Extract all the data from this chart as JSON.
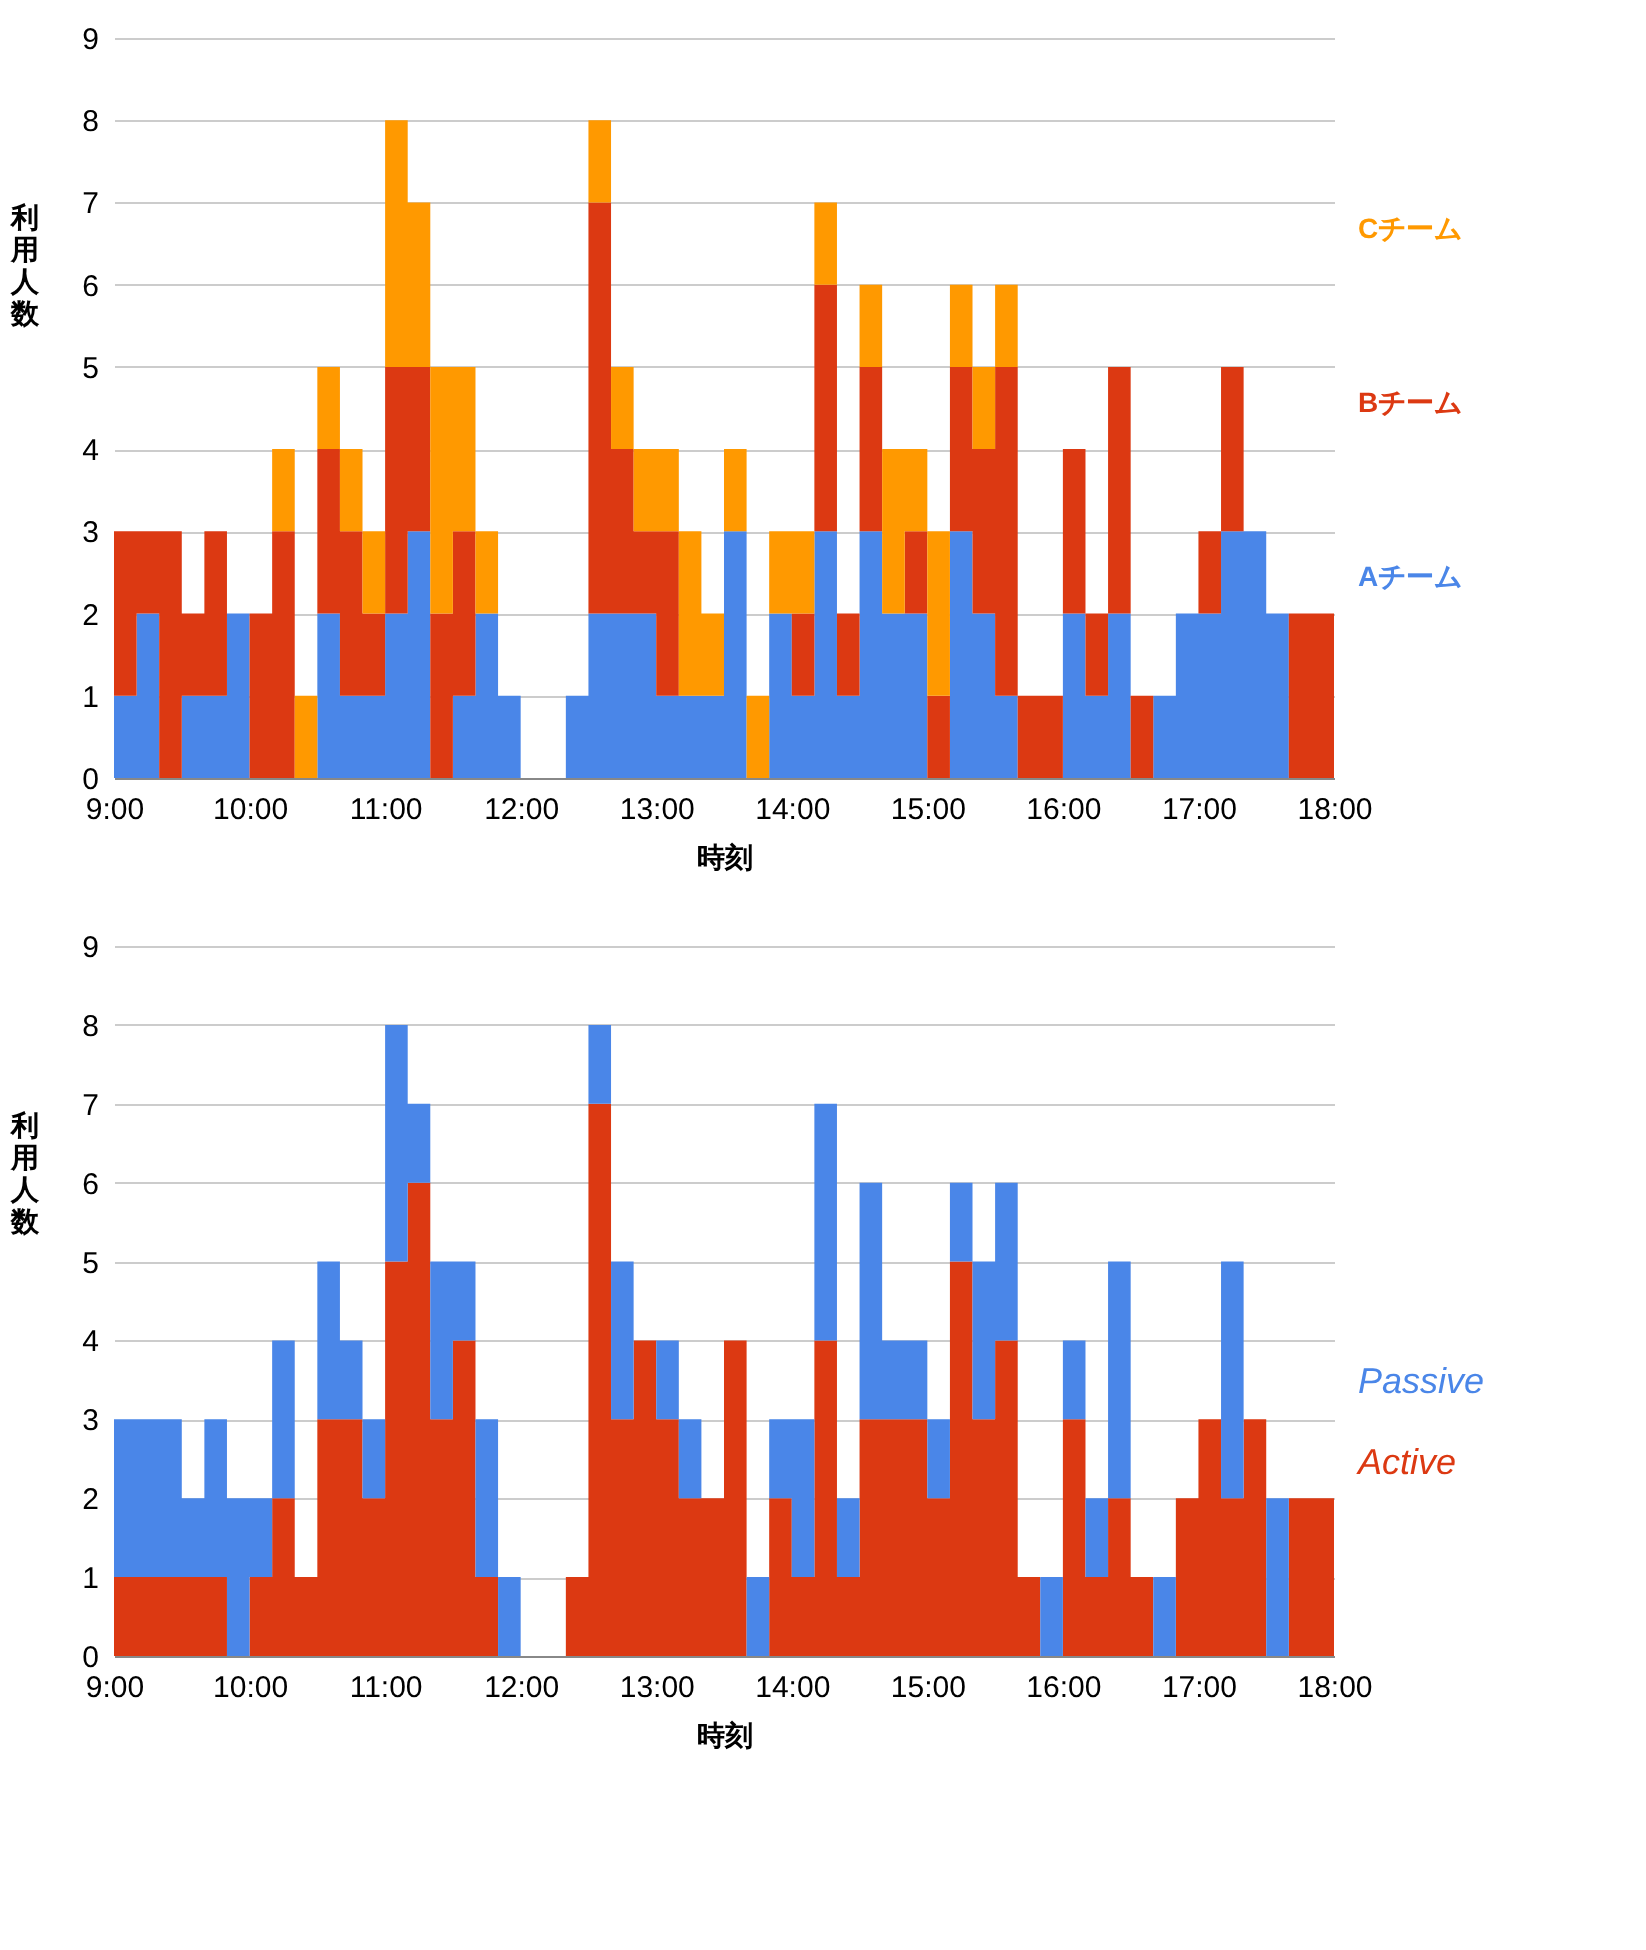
{
  "chart_data": [
    {
      "type": "area",
      "stacked": true,
      "xlabel": "時刻",
      "ylabel": "利用人数",
      "legend": false,
      "grid": "y",
      "marker": "none",
      "x": [
        9,
        9.1667,
        9.3333,
        9.5,
        9.6667,
        9.8333,
        10,
        10.1667,
        10.3333,
        10.5,
        10.6667,
        10.8333,
        11,
        11.1667,
        11.3333,
        11.5,
        11.6667,
        11.8333,
        12,
        12.1667,
        12.3333,
        12.5,
        12.6667,
        12.8333,
        13,
        13.1667,
        13.3333,
        13.5,
        13.6667,
        13.8333,
        14,
        14.1667,
        14.3333,
        14.5,
        14.6667,
        14.8333,
        15,
        15.1667,
        15.3333,
        15.5,
        15.6667,
        15.8333,
        16,
        16.1667,
        16.3333,
        16.5,
        16.6667,
        16.8333,
        17,
        17.1667,
        17.3333,
        17.5,
        17.6667,
        17.8333,
        18
      ],
      "xlim": [
        9,
        18
      ],
      "xticks": [
        {
          "value": 9,
          "label": "9:00"
        },
        {
          "value": 10,
          "label": "10:00"
        },
        {
          "value": 11,
          "label": "11:00"
        },
        {
          "value": 12,
          "label": "12:00"
        },
        {
          "value": 13,
          "label": "13:00"
        },
        {
          "value": 14,
          "label": "14:00"
        },
        {
          "value": 15,
          "label": "15:00"
        },
        {
          "value": 16,
          "label": "16:00"
        },
        {
          "value": 17,
          "label": "17:00"
        },
        {
          "value": 18,
          "label": "18:00"
        }
      ],
      "ylim": [
        0,
        9
      ],
      "yticks": [
        0,
        1,
        2,
        3,
        4,
        5,
        6,
        7,
        8,
        9
      ],
      "series": [
        {
          "name": "Aチーム",
          "color": "#4a86e8",
          "values": [
            1,
            2,
            0,
            1,
            1,
            2,
            0,
            0,
            0,
            2,
            1,
            1,
            2,
            3,
            0,
            1,
            2,
            1,
            0,
            0,
            1,
            2,
            2,
            2,
            1,
            1,
            1,
            3,
            0,
            2,
            1,
            3,
            1,
            3,
            2,
            2,
            0,
            3,
            2,
            1,
            0,
            0,
            2,
            1,
            2,
            0,
            1,
            2,
            2,
            3,
            3,
            2,
            0,
            0,
            0
          ]
        },
        {
          "name": "Bチーム",
          "color": "#dc3912",
          "values": [
            2,
            1,
            3,
            1,
            2,
            0,
            2,
            3,
            0,
            2,
            2,
            1,
            3,
            2,
            2,
            2,
            0,
            0,
            0,
            0,
            0,
            5,
            2,
            1,
            2,
            0,
            0,
            0,
            0,
            0,
            1,
            3,
            1,
            2,
            0,
            1,
            1,
            2,
            2,
            4,
            1,
            1,
            2,
            1,
            3,
            1,
            0,
            0,
            1,
            2,
            0,
            0,
            2,
            2,
            2
          ]
        },
        {
          "name": "Cチーム",
          "color": "#ff9900",
          "values": [
            0,
            0,
            0,
            0,
            0,
            0,
            0,
            1,
            1,
            1,
            1,
            1,
            3,
            2,
            3,
            2,
            1,
            0,
            0,
            0,
            0,
            1,
            1,
            1,
            1,
            2,
            1,
            1,
            1,
            1,
            1,
            1,
            0,
            1,
            2,
            1,
            2,
            1,
            1,
            1,
            0,
            0,
            0,
            0,
            0,
            0,
            0,
            0,
            0,
            0,
            0,
            0,
            0,
            0,
            0
          ]
        }
      ]
    },
    {
      "type": "area",
      "stacked": true,
      "xlabel": "時刻",
      "ylabel": "利用人数",
      "legend": false,
      "grid": "y",
      "marker": "none",
      "x": [
        9,
        9.1667,
        9.3333,
        9.5,
        9.6667,
        9.8333,
        10,
        10.1667,
        10.3333,
        10.5,
        10.6667,
        10.8333,
        11,
        11.1667,
        11.3333,
        11.5,
        11.6667,
        11.8333,
        12,
        12.1667,
        12.3333,
        12.5,
        12.6667,
        12.8333,
        13,
        13.1667,
        13.3333,
        13.5,
        13.6667,
        13.8333,
        14,
        14.1667,
        14.3333,
        14.5,
        14.6667,
        14.8333,
        15,
        15.1667,
        15.3333,
        15.5,
        15.6667,
        15.8333,
        16,
        16.1667,
        16.3333,
        16.5,
        16.6667,
        16.8333,
        17,
        17.1667,
        17.3333,
        17.5,
        17.6667,
        17.8333,
        18
      ],
      "xlim": [
        9,
        18
      ],
      "xticks": [
        {
          "value": 9,
          "label": "9:00"
        },
        {
          "value": 10,
          "label": "10:00"
        },
        {
          "value": 11,
          "label": "11:00"
        },
        {
          "value": 12,
          "label": "12:00"
        },
        {
          "value": 13,
          "label": "13:00"
        },
        {
          "value": 14,
          "label": "14:00"
        },
        {
          "value": 15,
          "label": "15:00"
        },
        {
          "value": 16,
          "label": "16:00"
        },
        {
          "value": 17,
          "label": "17:00"
        },
        {
          "value": 18,
          "label": "18:00"
        }
      ],
      "ylim": [
        0,
        9
      ],
      "yticks": [
        0,
        1,
        2,
        3,
        4,
        5,
        6,
        7,
        8,
        9
      ],
      "series": [
        {
          "name": "Active",
          "color": "#dc3912",
          "values": [
            1,
            1,
            1,
            1,
            1,
            0,
            1,
            2,
            1,
            3,
            3,
            2,
            5,
            6,
            3,
            4,
            1,
            0,
            0,
            0,
            1,
            7,
            3,
            4,
            3,
            2,
            2,
            4,
            0,
            2,
            1,
            4,
            1,
            3,
            3,
            3,
            2,
            5,
            3,
            4,
            1,
            0,
            3,
            1,
            2,
            1,
            0,
            2,
            3,
            2,
            3,
            0,
            2,
            2,
            2
          ]
        },
        {
          "name": "Passive",
          "color": "#4a86e8",
          "values": [
            2,
            2,
            2,
            1,
            2,
            2,
            1,
            2,
            0,
            2,
            1,
            1,
            3,
            1,
            2,
            1,
            2,
            1,
            0,
            0,
            0,
            1,
            2,
            0,
            1,
            1,
            0,
            0,
            1,
            1,
            2,
            3,
            1,
            3,
            1,
            1,
            1,
            1,
            2,
            2,
            0,
            1,
            1,
            1,
            3,
            0,
            1,
            0,
            0,
            3,
            0,
            2,
            0,
            0,
            0
          ]
        }
      ]
    }
  ]
}
